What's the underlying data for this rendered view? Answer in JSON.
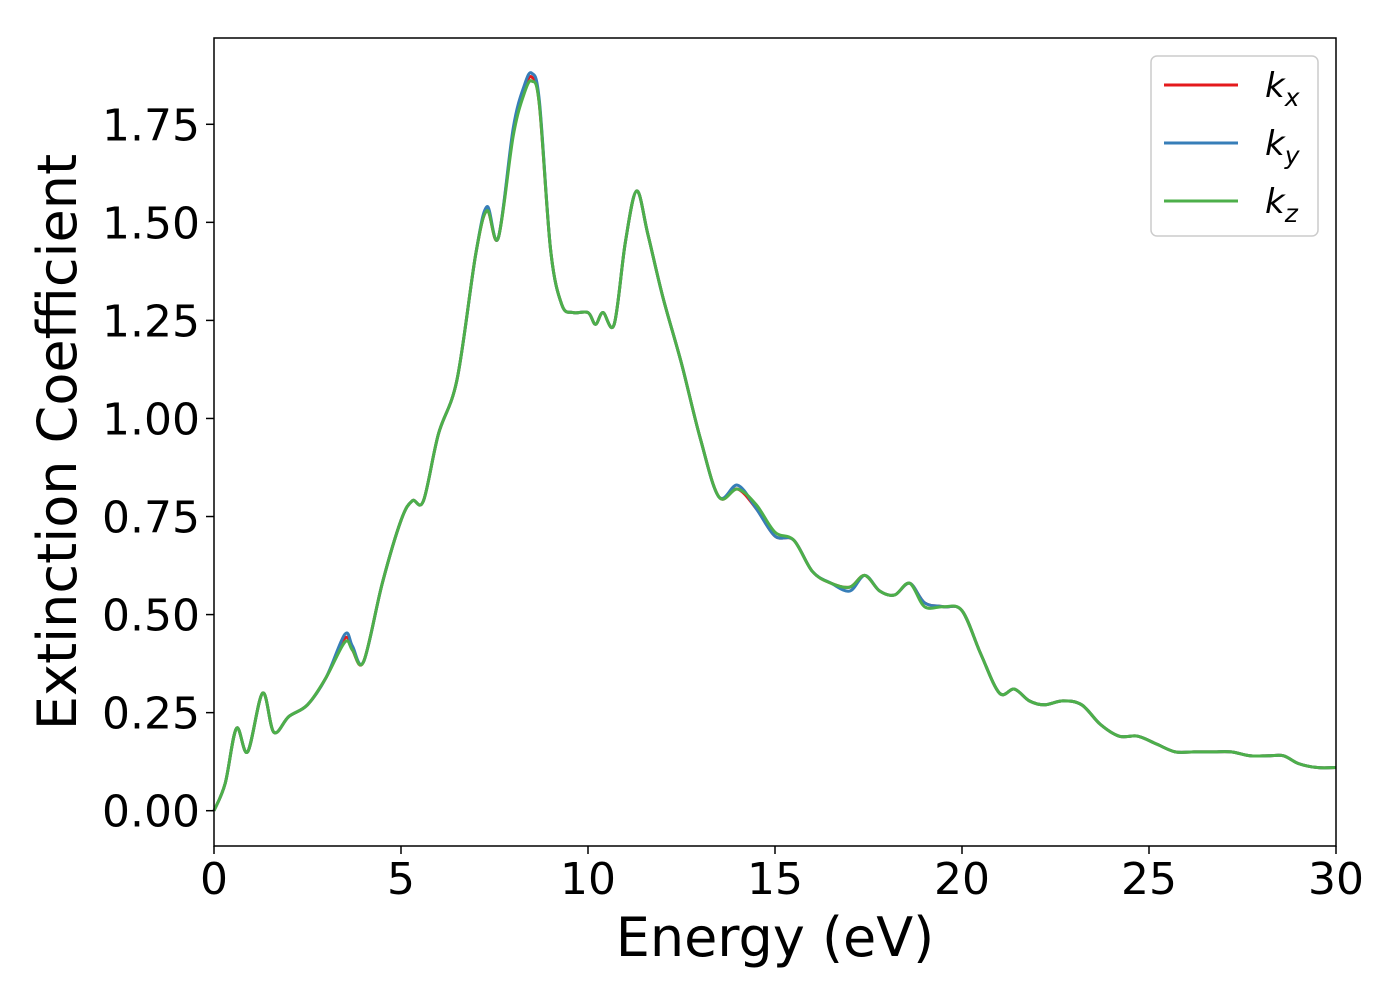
{
  "chart_data": {
    "type": "line",
    "title": "",
    "xlabel": "Energy (eV)",
    "ylabel": "Extinction Coefficient",
    "xlim": [
      0,
      30
    ],
    "ylim": [
      -0.09,
      1.97
    ],
    "xticks": [
      0,
      5,
      10,
      15,
      20,
      25,
      30
    ],
    "xtick_labels": [
      "0",
      "5",
      "10",
      "15",
      "20",
      "25",
      "30"
    ],
    "yticks": [
      0.0,
      0.25,
      0.5,
      0.75,
      1.0,
      1.25,
      1.5,
      1.75
    ],
    "ytick_labels": [
      "0.00",
      "0.25",
      "0.50",
      "0.75",
      "1.00",
      "1.25",
      "1.50",
      "1.75"
    ],
    "grid": false,
    "legend_position": "top-right",
    "legend": [
      {
        "base": "k",
        "sub": "x",
        "color": "#e41a1c"
      },
      {
        "base": "k",
        "sub": "y",
        "color": "#377eb8"
      },
      {
        "base": "k",
        "sub": "z",
        "color": "#4daf4a"
      }
    ],
    "x": [
      0,
      0.3,
      0.6,
      0.9,
      1.3,
      1.6,
      2.0,
      2.5,
      3.0,
      3.5,
      3.7,
      4.0,
      4.5,
      5.0,
      5.3,
      5.6,
      6.0,
      6.5,
      7.0,
      7.3,
      7.6,
      8.0,
      8.3,
      8.5,
      8.7,
      9.0,
      9.3,
      9.6,
      10.0,
      10.2,
      10.4,
      10.7,
      11.0,
      11.3,
      11.6,
      12.0,
      12.5,
      13.0,
      13.5,
      14.0,
      14.5,
      15.0,
      15.5,
      16.0,
      16.5,
      17.0,
      17.4,
      17.8,
      18.2,
      18.6,
      19.0,
      19.5,
      20.0,
      20.5,
      21.0,
      21.4,
      21.8,
      22.2,
      22.7,
      23.2,
      23.7,
      24.2,
      24.7,
      25.2,
      25.7,
      26.2,
      26.7,
      27.2,
      27.7,
      28.2,
      28.6,
      29.0,
      29.5,
      30.0
    ],
    "series": [
      {
        "name": "k_x",
        "color": "#e41a1c",
        "values": [
          0.0,
          0.07,
          0.21,
          0.15,
          0.3,
          0.2,
          0.24,
          0.27,
          0.34,
          0.44,
          0.41,
          0.38,
          0.58,
          0.74,
          0.79,
          0.79,
          0.96,
          1.1,
          1.42,
          1.53,
          1.46,
          1.73,
          1.84,
          1.87,
          1.8,
          1.43,
          1.29,
          1.27,
          1.27,
          1.24,
          1.27,
          1.24,
          1.45,
          1.58,
          1.47,
          1.31,
          1.14,
          0.95,
          0.8,
          0.82,
          0.77,
          0.7,
          0.69,
          0.61,
          0.58,
          0.57,
          0.6,
          0.56,
          0.55,
          0.58,
          0.53,
          0.52,
          0.51,
          0.4,
          0.3,
          0.31,
          0.28,
          0.27,
          0.28,
          0.27,
          0.22,
          0.19,
          0.19,
          0.17,
          0.15,
          0.15,
          0.15,
          0.15,
          0.14,
          0.14,
          0.14,
          0.12,
          0.11,
          0.11
        ]
      },
      {
        "name": "k_y",
        "color": "#377eb8",
        "values": [
          0.0,
          0.07,
          0.21,
          0.15,
          0.3,
          0.2,
          0.24,
          0.27,
          0.34,
          0.45,
          0.42,
          0.38,
          0.58,
          0.74,
          0.79,
          0.79,
          0.96,
          1.1,
          1.42,
          1.54,
          1.46,
          1.74,
          1.85,
          1.88,
          1.81,
          1.43,
          1.29,
          1.27,
          1.27,
          1.24,
          1.27,
          1.24,
          1.45,
          1.58,
          1.47,
          1.31,
          1.14,
          0.95,
          0.8,
          0.83,
          0.77,
          0.7,
          0.69,
          0.61,
          0.58,
          0.56,
          0.6,
          0.56,
          0.55,
          0.58,
          0.53,
          0.52,
          0.51,
          0.4,
          0.3,
          0.31,
          0.28,
          0.27,
          0.28,
          0.27,
          0.22,
          0.19,
          0.19,
          0.17,
          0.15,
          0.15,
          0.15,
          0.15,
          0.14,
          0.14,
          0.14,
          0.12,
          0.11,
          0.11
        ]
      },
      {
        "name": "k_z",
        "color": "#4daf4a",
        "values": [
          0.0,
          0.07,
          0.21,
          0.15,
          0.3,
          0.2,
          0.24,
          0.27,
          0.34,
          0.43,
          0.41,
          0.38,
          0.58,
          0.74,
          0.79,
          0.79,
          0.96,
          1.1,
          1.42,
          1.53,
          1.46,
          1.72,
          1.83,
          1.86,
          1.8,
          1.43,
          1.29,
          1.27,
          1.27,
          1.24,
          1.27,
          1.24,
          1.45,
          1.58,
          1.47,
          1.31,
          1.14,
          0.95,
          0.8,
          0.82,
          0.78,
          0.71,
          0.69,
          0.61,
          0.58,
          0.57,
          0.6,
          0.56,
          0.55,
          0.58,
          0.52,
          0.52,
          0.51,
          0.4,
          0.3,
          0.31,
          0.28,
          0.27,
          0.28,
          0.27,
          0.22,
          0.19,
          0.19,
          0.17,
          0.15,
          0.15,
          0.15,
          0.15,
          0.14,
          0.14,
          0.14,
          0.12,
          0.11,
          0.11
        ]
      }
    ]
  }
}
